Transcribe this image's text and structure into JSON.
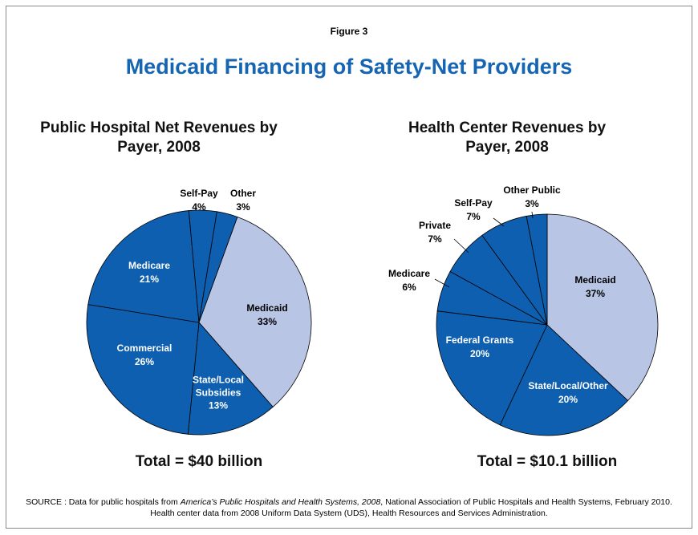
{
  "figure_label": "Figure 3",
  "title": "Medicaid Financing of Safety-Net Providers",
  "source": [
    "SOURCE : Data for public hospitals from ",
    "America’s Public Hospitals and Health Systems, 2008",
    ", National Association of Public Hospitals and Health Systems, February 2010.  Health center data from 2008 Uniform Data System (UDS), Health Resources and Services Administration."
  ],
  "chart_data": [
    {
      "type": "pie",
      "title": "Public Hospital Net Revenues by Payer, 2008",
      "categories": [
        "Medicaid",
        "State/Local Subsidies",
        "Commercial",
        "Medicare",
        "Self-Pay",
        "Other"
      ],
      "values": [
        33,
        13,
        26,
        21,
        4,
        3
      ],
      "value_labels": [
        "33%",
        "13%",
        "26%",
        "21%",
        "4%",
        "3%"
      ],
      "colors": [
        "#b8c5e5",
        "#0e5faf",
        "#0e5faf",
        "#0e5faf",
        "#0e5faf",
        "#0e5faf"
      ],
      "annotation": "Total = $40 billion"
    },
    {
      "type": "pie",
      "title": "Health Center Revenues by Payer, 2008",
      "categories": [
        "Medicaid",
        "State/Local/Other",
        "Federal Grants",
        "Medicare",
        "Private",
        "Self-Pay",
        "Other Public"
      ],
      "values": [
        37,
        20,
        20,
        6,
        7,
        7,
        3
      ],
      "value_labels": [
        "37%",
        "20%",
        "20%",
        "6%",
        "7%",
        "7%",
        "3%"
      ],
      "colors": [
        "#b8c5e5",
        "#0e5faf",
        "#0e5faf",
        "#0e5faf",
        "#0e5faf",
        "#0e5faf",
        "#0e5faf"
      ],
      "annotation": "Total = $10.1 billion"
    }
  ]
}
